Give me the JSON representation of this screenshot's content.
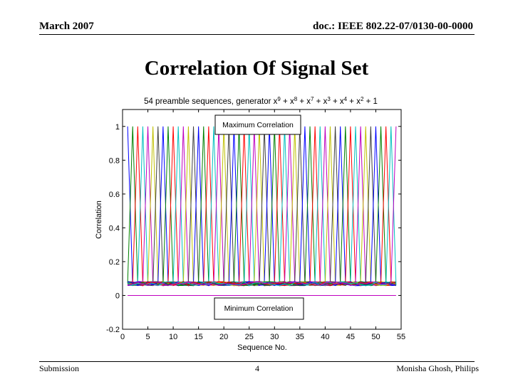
{
  "header": {
    "date": "March 2007",
    "doc": "doc.: IEEE 802.22-07/0130-00-0000"
  },
  "slide_title": "Correlation Of Signal Set",
  "footer": {
    "left": "Submission",
    "page": "4",
    "right": "Monisha Ghosh, Philips"
  },
  "chart_data": {
    "type": "line",
    "title_prefix": "54 preamble sequences, generator x",
    "title_terms": [
      {
        "exp": "9",
        "after": " + x"
      },
      {
        "exp": "8",
        "after": " + x"
      },
      {
        "exp": "7",
        "after": " + x"
      },
      {
        "exp": "3",
        "after": " + x"
      },
      {
        "exp": "4",
        "after": " + x"
      },
      {
        "exp": "2",
        "after": " + 1"
      }
    ],
    "xlabel": "Sequence No.",
    "ylabel": "Correlation",
    "xlim": [
      0,
      55
    ],
    "ylim": [
      -0.2,
      1.1
    ],
    "xticks": [
      "0",
      "5",
      "10",
      "15",
      "20",
      "25",
      "30",
      "35",
      "40",
      "45",
      "50",
      "55"
    ],
    "yticks": [
      "-0.2",
      "0",
      "0.2",
      "0.4",
      "0.6",
      "0.8",
      "1"
    ],
    "series_count": 54,
    "max_correlation": 1,
    "cross_correlation_level": 0.07,
    "min_correlation": 0,
    "annotations": {
      "max": "Maximum Correlation",
      "min": "Minimum Correlation"
    },
    "colors": [
      "#0000ff",
      "#008000",
      "#ff0000",
      "#00bfbf",
      "#bf00bf",
      "#bfbf00",
      "#404040"
    ]
  }
}
